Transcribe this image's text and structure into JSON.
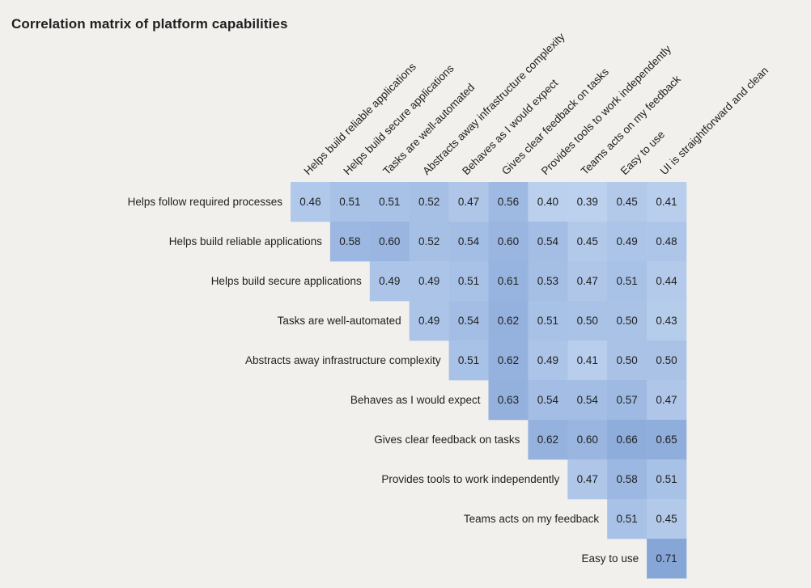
{
  "chart_data": {
    "type": "heatmap",
    "title": "Correlation matrix of platform capabilities",
    "columns": [
      "Helps build reliable applications",
      "Helps build secure applications",
      "Tasks are well-automated",
      "Abstracts away infrastructure complexity",
      "Behaves as I would expect",
      "Gives clear feedback on tasks",
      "Provides tools to work independently",
      "Teams acts on my feedback",
      "Easy to use",
      "UI is straightforward and clean"
    ],
    "rows": [
      {
        "label": "Helps follow required processes",
        "start": 0,
        "values": [
          0.46,
          0.51,
          0.51,
          0.52,
          0.47,
          0.56,
          0.4,
          0.39,
          0.45,
          0.41
        ]
      },
      {
        "label": "Helps build reliable applications",
        "start": 1,
        "values": [
          0.58,
          0.6,
          0.52,
          0.54,
          0.6,
          0.54,
          0.45,
          0.49,
          0.48
        ]
      },
      {
        "label": "Helps build secure applications",
        "start": 2,
        "values": [
          0.49,
          0.49,
          0.51,
          0.61,
          0.53,
          0.47,
          0.51,
          0.44
        ]
      },
      {
        "label": "Tasks are well-automated",
        "start": 3,
        "values": [
          0.49,
          0.54,
          0.62,
          0.51,
          0.5,
          0.5,
          0.43
        ]
      },
      {
        "label": "Abstracts away infrastructure complexity",
        "start": 4,
        "values": [
          0.51,
          0.62,
          0.49,
          0.41,
          0.5,
          0.5
        ]
      },
      {
        "label": "Behaves as I would expect",
        "start": 5,
        "values": [
          0.63,
          0.54,
          0.54,
          0.57,
          0.47
        ]
      },
      {
        "label": "Gives clear feedback on tasks",
        "start": 6,
        "values": [
          0.62,
          0.6,
          0.66,
          0.65
        ]
      },
      {
        "label": "Provides tools to work independently",
        "start": 7,
        "values": [
          0.47,
          0.58,
          0.51
        ]
      },
      {
        "label": "Teams acts on my feedback",
        "start": 8,
        "values": [
          0.51,
          0.45
        ]
      },
      {
        "label": "Easy to use",
        "start": 9,
        "values": [
          0.71
        ]
      }
    ],
    "color_scale": {
      "min": 0.39,
      "max": 0.71,
      "low_color": "#bcd1ee",
      "high_color": "#86a6d8"
    }
  }
}
